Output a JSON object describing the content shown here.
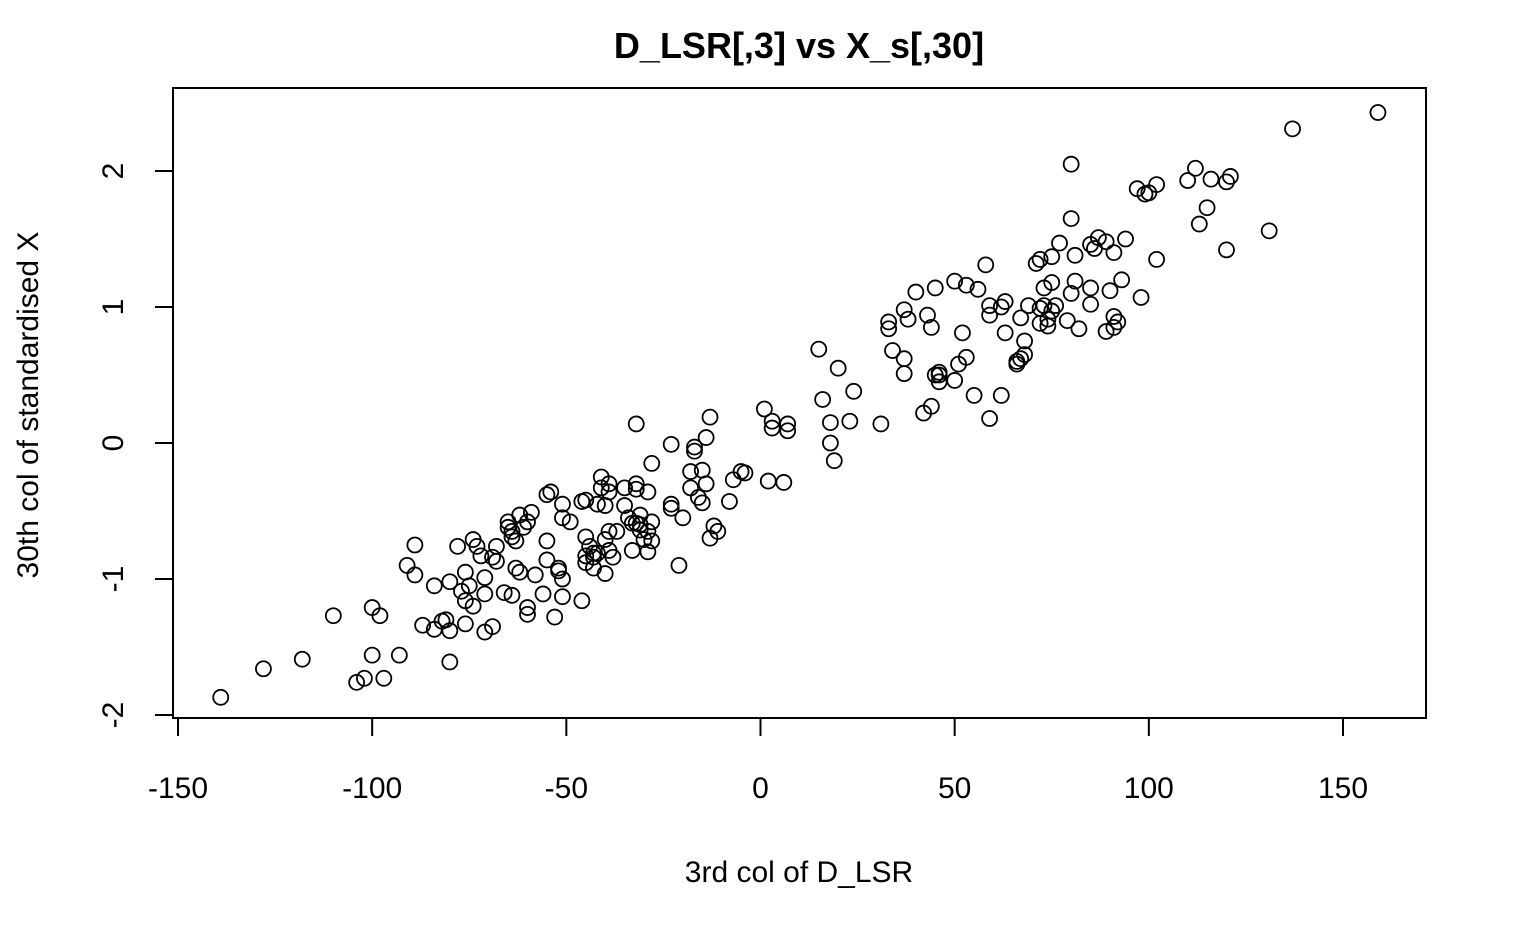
{
  "chart_data": {
    "type": "scatter",
    "title": "D_LSR[,3] vs X_s[,30]",
    "xlabel": "3rd col of D_LSR",
    "ylabel": "30th col of standardised X",
    "xlim": [
      -150,
      170
    ],
    "ylim": [
      -2,
      2.5
    ],
    "xticks": [
      -150,
      -100,
      -50,
      0,
      50,
      100,
      150
    ],
    "xtick_labels": [
      "-150",
      "-100",
      "-50",
      "0",
      "50",
      "100",
      "150"
    ],
    "yticks": [
      -2,
      -1,
      0,
      1,
      2
    ],
    "ytick_labels": [
      "-2",
      "-1",
      "0",
      "1",
      "2"
    ],
    "grid": false,
    "marker": "open-circle",
    "points": [
      [
        -139,
        -1.87
      ],
      [
        -128,
        -1.66
      ],
      [
        -118,
        -1.59
      ],
      [
        -110,
        -1.27
      ],
      [
        -104,
        -1.76
      ],
      [
        -102,
        -1.73
      ],
      [
        -100,
        -1.56
      ],
      [
        -100,
        -1.21
      ],
      [
        -98,
        -1.27
      ],
      [
        -97,
        -1.73
      ],
      [
        -93,
        -1.56
      ],
      [
        -91,
        -0.9
      ],
      [
        -89,
        -0.75
      ],
      [
        -89,
        -0.97
      ],
      [
        -87,
        -1.34
      ],
      [
        -84,
        -1.05
      ],
      [
        -84,
        -1.37
      ],
      [
        -82,
        -1.31
      ],
      [
        -81,
        -1.3
      ],
      [
        -80,
        -1.38
      ],
      [
        -80,
        -1.61
      ],
      [
        -80,
        -1.02
      ],
      [
        -78,
        -0.76
      ],
      [
        -77,
        -1.09
      ],
      [
        -76,
        -0.95
      ],
      [
        -76,
        -1.16
      ],
      [
        -76,
        -1.33
      ],
      [
        -75,
        -1.05
      ],
      [
        -74,
        -1.2
      ],
      [
        -74,
        -0.71
      ],
      [
        -73,
        -0.76
      ],
      [
        -72,
        -0.83
      ],
      [
        -71,
        -1.11
      ],
      [
        -71,
        -1.39
      ],
      [
        -71,
        -0.99
      ],
      [
        -69,
        -1.35
      ],
      [
        -69,
        -0.84
      ],
      [
        -68,
        -0.87
      ],
      [
        -68,
        -0.76
      ],
      [
        -66,
        -1.1
      ],
      [
        -65,
        -0.62
      ],
      [
        -65,
        -0.58
      ],
      [
        -64,
        -0.65
      ],
      [
        -64,
        -1.12
      ],
      [
        -64,
        -0.69
      ],
      [
        -63,
        -0.72
      ],
      [
        -63,
        -0.92
      ],
      [
        -62,
        -0.95
      ],
      [
        -62,
        -0.53
      ],
      [
        -61,
        -0.62
      ],
      [
        -60,
        -1.21
      ],
      [
        -60,
        -1.26
      ],
      [
        -60,
        -0.58
      ],
      [
        -59,
        -0.51
      ],
      [
        -58,
        -0.97
      ],
      [
        -56,
        -1.11
      ],
      [
        -55,
        -0.72
      ],
      [
        -55,
        -0.86
      ],
      [
        -55,
        -0.38
      ],
      [
        -54,
        -0.36
      ],
      [
        -53,
        -1.28
      ],
      [
        -52,
        -0.92
      ],
      [
        -52,
        -0.94
      ],
      [
        -51,
        -1.0
      ],
      [
        -51,
        -1.13
      ],
      [
        -51,
        -0.55
      ],
      [
        -51,
        -0.45
      ],
      [
        -49,
        -0.58
      ],
      [
        -46,
        -0.43
      ],
      [
        -46,
        -1.16
      ],
      [
        -45,
        -0.69
      ],
      [
        -45,
        -0.83
      ],
      [
        -45,
        -0.88
      ],
      [
        -45,
        -0.42
      ],
      [
        -44,
        -0.76
      ],
      [
        -43,
        -0.81
      ],
      [
        -43,
        -0.84
      ],
      [
        -43,
        -0.92
      ],
      [
        -42,
        -0.81
      ],
      [
        -42,
        -0.45
      ],
      [
        -41,
        -0.33
      ],
      [
        -41,
        -0.25
      ],
      [
        -40,
        -0.46
      ],
      [
        -40,
        -0.71
      ],
      [
        -40,
        -0.96
      ],
      [
        -39,
        -0.3
      ],
      [
        -39,
        -0.36
      ],
      [
        -39,
        -0.65
      ],
      [
        -39,
        -0.79
      ],
      [
        -38,
        -0.84
      ],
      [
        -37,
        -0.65
      ],
      [
        -35,
        -0.46
      ],
      [
        -35,
        -0.33
      ],
      [
        -34,
        -0.55
      ],
      [
        -33,
        -0.59
      ],
      [
        -33,
        -0.79
      ],
      [
        -32,
        0.14
      ],
      [
        -32,
        -0.3
      ],
      [
        -32,
        -0.34
      ],
      [
        -32,
        -0.59
      ],
      [
        -31,
        -0.53
      ],
      [
        -31,
        -0.6
      ],
      [
        -31,
        -0.64
      ],
      [
        -30,
        -0.71
      ],
      [
        -29,
        -0.36
      ],
      [
        -29,
        -0.8
      ],
      [
        -29,
        -0.65
      ],
      [
        -28,
        -0.58
      ],
      [
        -28,
        -0.72
      ],
      [
        -28,
        -0.15
      ],
      [
        -23,
        -0.48
      ],
      [
        -23,
        -0.45
      ],
      [
        -23,
        -0.01
      ],
      [
        -21,
        -0.9
      ],
      [
        -20,
        -0.55
      ],
      [
        -18,
        -0.21
      ],
      [
        -18,
        -0.33
      ],
      [
        -17,
        -0.03
      ],
      [
        -17,
        -0.06
      ],
      [
        -16,
        -0.4
      ],
      [
        -15,
        -0.44
      ],
      [
        -15,
        -0.2
      ],
      [
        -14,
        0.04
      ],
      [
        -14,
        -0.3
      ],
      [
        -13,
        -0.7
      ],
      [
        -13,
        0.19
      ],
      [
        -12,
        -0.61
      ],
      [
        -11,
        -0.65
      ],
      [
        -8,
        -0.43
      ],
      [
        -7,
        -0.27
      ],
      [
        -5,
        -0.21
      ],
      [
        -4,
        -0.22
      ],
      [
        1,
        0.25
      ],
      [
        2,
        -0.28
      ],
      [
        3,
        0.11
      ],
      [
        3,
        0.16
      ],
      [
        6,
        -0.29
      ],
      [
        7,
        0.09
      ],
      [
        7,
        0.14
      ],
      [
        15,
        0.69
      ],
      [
        16,
        0.32
      ],
      [
        18,
        0.15
      ],
      [
        18,
        0.0
      ],
      [
        19,
        -0.13
      ],
      [
        20,
        0.55
      ],
      [
        23,
        0.16
      ],
      [
        24,
        0.38
      ],
      [
        31,
        0.14
      ],
      [
        33,
        0.84
      ],
      [
        33,
        0.89
      ],
      [
        34,
        0.68
      ],
      [
        37,
        0.51
      ],
      [
        37,
        0.62
      ],
      [
        37,
        0.98
      ],
      [
        38,
        0.91
      ],
      [
        40,
        1.11
      ],
      [
        42,
        0.22
      ],
      [
        43,
        0.94
      ],
      [
        44,
        0.85
      ],
      [
        44,
        0.27
      ],
      [
        45,
        0.5
      ],
      [
        45,
        1.14
      ],
      [
        46,
        0.45
      ],
      [
        46,
        0.52
      ],
      [
        46,
        0.5
      ],
      [
        50,
        1.19
      ],
      [
        50,
        0.46
      ],
      [
        51,
        0.58
      ],
      [
        52,
        0.81
      ],
      [
        53,
        1.16
      ],
      [
        53,
        0.63
      ],
      [
        55,
        0.35
      ],
      [
        56,
        1.13
      ],
      [
        58,
        1.31
      ],
      [
        59,
        0.94
      ],
      [
        59,
        1.01
      ],
      [
        59,
        0.18
      ],
      [
        62,
        0.35
      ],
      [
        62,
        1.0
      ],
      [
        63,
        0.81
      ],
      [
        63,
        1.04
      ],
      [
        66,
        0.58
      ],
      [
        66,
        0.6
      ],
      [
        67,
        0.92
      ],
      [
        67,
        0.62
      ],
      [
        68,
        0.65
      ],
      [
        68,
        0.75
      ],
      [
        69,
        1.01
      ],
      [
        71,
        1.32
      ],
      [
        72,
        0.99
      ],
      [
        72,
        0.88
      ],
      [
        72,
        1.35
      ],
      [
        73,
        1.14
      ],
      [
        73,
        1.01
      ],
      [
        74,
        0.86
      ],
      [
        74,
        0.91
      ],
      [
        75,
        1.18
      ],
      [
        75,
        1.37
      ],
      [
        75,
        0.97
      ],
      [
        76,
        1.01
      ],
      [
        77,
        1.47
      ],
      [
        79,
        0.9
      ],
      [
        80,
        2.05
      ],
      [
        80,
        1.65
      ],
      [
        80,
        1.1
      ],
      [
        81,
        1.38
      ],
      [
        81,
        1.19
      ],
      [
        82,
        0.84
      ],
      [
        85,
        1.14
      ],
      [
        85,
        1.02
      ],
      [
        85,
        1.46
      ],
      [
        86,
        1.43
      ],
      [
        87,
        1.51
      ],
      [
        89,
        0.82
      ],
      [
        89,
        1.48
      ],
      [
        90,
        1.12
      ],
      [
        91,
        1.4
      ],
      [
        91,
        0.93
      ],
      [
        91,
        0.85
      ],
      [
        92,
        0.89
      ],
      [
        93,
        1.2
      ],
      [
        94,
        1.5
      ],
      [
        97,
        1.87
      ],
      [
        98,
        1.07
      ],
      [
        99,
        1.83
      ],
      [
        100,
        1.84
      ],
      [
        102,
        1.9
      ],
      [
        102,
        1.35
      ],
      [
        110,
        1.93
      ],
      [
        112,
        2.02
      ],
      [
        113,
        1.61
      ],
      [
        115,
        1.73
      ],
      [
        116,
        1.94
      ],
      [
        120,
        1.92
      ],
      [
        120,
        1.42
      ],
      [
        121,
        1.96
      ],
      [
        131,
        1.56
      ],
      [
        137,
        2.31
      ],
      [
        159,
        2.43
      ]
    ]
  }
}
